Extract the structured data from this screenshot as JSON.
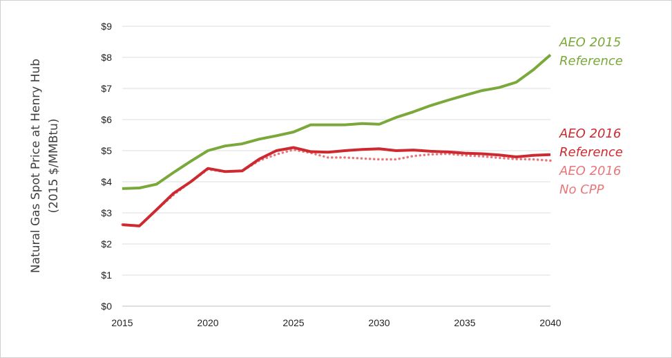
{
  "chart_data": {
    "type": "line",
    "title": "",
    "xlabel": "",
    "ylabel": "Natural Gas Spot Price at Henry Hub",
    "ylabel_units": "(2015 $/MMBtu)",
    "xlim": [
      2015,
      2040
    ],
    "ylim": [
      0,
      9
    ],
    "x_ticks": [
      "2015",
      "2020",
      "2025",
      "2030",
      "2035",
      "2040"
    ],
    "y_ticks": [
      "$0",
      "$1",
      "$2",
      "$3",
      "$4",
      "$5",
      "$6",
      "$7",
      "$8",
      "$9"
    ],
    "grid": "horizontal",
    "x": [
      2015,
      2016,
      2017,
      2018,
      2019,
      2020,
      2021,
      2022,
      2023,
      2024,
      2025,
      2026,
      2027,
      2028,
      2029,
      2030,
      2031,
      2032,
      2033,
      2034,
      2035,
      2036,
      2037,
      2038,
      2039,
      2040
    ],
    "series": [
      {
        "name": "AEO 2015 Reference",
        "label_lines": [
          "AEO 2015",
          "Reference"
        ],
        "color": "#7aa83a",
        "style": "solid",
        "values": [
          3.78,
          3.8,
          3.92,
          4.3,
          4.66,
          5.0,
          5.15,
          5.22,
          5.37,
          5.48,
          5.6,
          5.83,
          5.83,
          5.83,
          5.87,
          5.85,
          6.07,
          6.25,
          6.45,
          6.62,
          6.78,
          6.93,
          7.03,
          7.2,
          7.6,
          8.08
        ]
      },
      {
        "name": "AEO 2016 Reference",
        "label_lines": [
          "AEO 2016",
          "Reference"
        ],
        "color": "#cc2a30",
        "style": "solid",
        "values": [
          2.62,
          2.58,
          3.1,
          3.63,
          4.0,
          4.43,
          4.33,
          4.35,
          4.73,
          5.0,
          5.1,
          4.97,
          4.95,
          5.0,
          5.04,
          5.06,
          5.0,
          5.02,
          4.98,
          4.96,
          4.92,
          4.9,
          4.86,
          4.8,
          4.85,
          4.87
        ]
      },
      {
        "name": "AEO 2016 No CPP",
        "label_lines": [
          "AEO 2016",
          "No CPP"
        ],
        "color": "#e8767a",
        "style": "dotted",
        "values": [
          2.62,
          2.58,
          3.1,
          3.58,
          4.0,
          4.4,
          4.32,
          4.35,
          4.68,
          4.88,
          5.03,
          4.93,
          4.78,
          4.78,
          4.75,
          4.72,
          4.72,
          4.83,
          4.88,
          4.9,
          4.85,
          4.82,
          4.77,
          4.73,
          4.72,
          4.68
        ]
      }
    ]
  }
}
